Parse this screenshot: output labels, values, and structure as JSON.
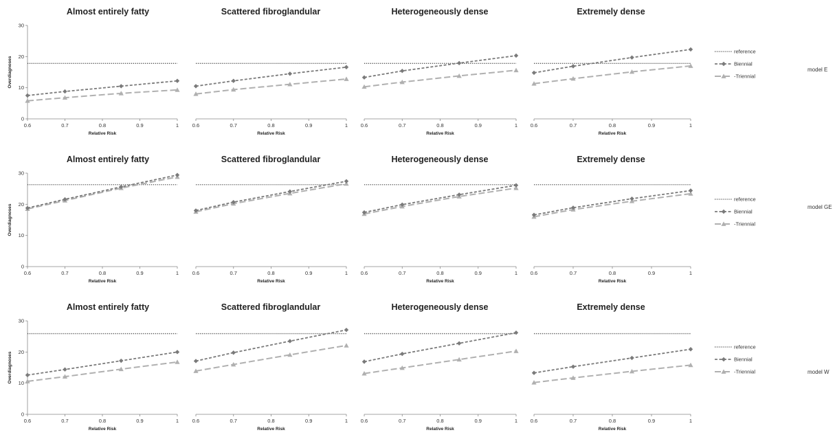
{
  "chart_data": {
    "type": "line",
    "x_label": "Relative Risk",
    "y_label": "Overdiagnoses",
    "xlim": [
      0.6,
      1
    ],
    "ylim": [
      0,
      30
    ],
    "x_ticks": [
      "0.6",
      "0.7",
      "0.8",
      "0.9",
      "1"
    ],
    "y_ticks": [
      "0",
      "10",
      "20",
      "30"
    ],
    "legend": [
      "reference",
      "Biennial",
      "Triennial"
    ],
    "legend_display": [
      "reference",
      "Biennial",
      "-Triennial"
    ],
    "colors": {
      "reference": "#555555",
      "biennial": "#7a7a7a",
      "triennial": "#b0b0b0"
    },
    "x_points": [
      0.6,
      0.7,
      0.85,
      1.0
    ],
    "grid": false,
    "legend_placement": "right",
    "models": [
      {
        "name": "model E",
        "panels": [
          {
            "title": "Almost entirely fatty",
            "reference": 17.8,
            "biennial": [
              7.5,
              8.8,
              10.5,
              12.2
            ],
            "triennial": [
              5.8,
              6.8,
              8.2,
              9.3
            ]
          },
          {
            "title": "Scattered fibroglandular",
            "reference": 17.8,
            "biennial": [
              10.5,
              12.2,
              14.5,
              16.6
            ],
            "triennial": [
              8.0,
              9.4,
              11.1,
              12.8
            ]
          },
          {
            "title": "Heterogeneously dense",
            "reference": 17.8,
            "biennial": [
              13.3,
              15.4,
              17.9,
              20.3
            ],
            "triennial": [
              10.3,
              11.8,
              13.8,
              15.6
            ]
          },
          {
            "title": "Extremely dense",
            "reference": 17.8,
            "biennial": [
              14.8,
              16.9,
              19.7,
              22.3
            ],
            "triennial": [
              11.3,
              12.9,
              15.1,
              17.0
            ]
          }
        ]
      },
      {
        "name": "model GE",
        "panels": [
          {
            "title": "Almost entirely fatty",
            "reference": 26.3,
            "biennial": [
              18.8,
              21.6,
              25.6,
              29.4
            ],
            "triennial": [
              18.5,
              21.2,
              25.2,
              28.8
            ]
          },
          {
            "title": "Scattered fibroglandular",
            "reference": 26.3,
            "biennial": [
              18.0,
              20.7,
              24.1,
              27.4
            ],
            "triennial": [
              17.6,
              20.2,
              23.5,
              26.6
            ]
          },
          {
            "title": "Heterogeneously dense",
            "reference": 26.3,
            "biennial": [
              17.4,
              19.9,
              23.1,
              26.1
            ],
            "triennial": [
              16.9,
              19.3,
              22.5,
              25.2
            ]
          },
          {
            "title": "Extremely dense",
            "reference": 26.3,
            "biennial": [
              16.6,
              18.9,
              21.8,
              24.4
            ],
            "triennial": [
              16.0,
              18.3,
              21.0,
              23.4
            ]
          }
        ]
      },
      {
        "name": "model W",
        "panels": [
          {
            "title": "Almost entirely fatty",
            "reference": 25.9,
            "biennial": [
              12.6,
              14.4,
              17.2,
              20.0
            ],
            "triennial": [
              10.6,
              12.1,
              14.5,
              16.8
            ]
          },
          {
            "title": "Scattered fibroglandular",
            "reference": 25.9,
            "biennial": [
              17.1,
              19.8,
              23.5,
              27.1
            ],
            "triennial": [
              13.9,
              16.0,
              19.1,
              22.1
            ]
          },
          {
            "title": "Heterogeneously dense",
            "reference": 25.9,
            "biennial": [
              16.9,
              19.4,
              22.8,
              26.2
            ],
            "triennial": [
              13.1,
              14.9,
              17.6,
              20.3
            ]
          },
          {
            "title": "Extremely dense",
            "reference": 25.9,
            "biennial": [
              13.3,
              15.3,
              18.1,
              20.9
            ],
            "triennial": [
              10.2,
              11.7,
              13.8,
              15.8
            ]
          }
        ]
      }
    ]
  }
}
